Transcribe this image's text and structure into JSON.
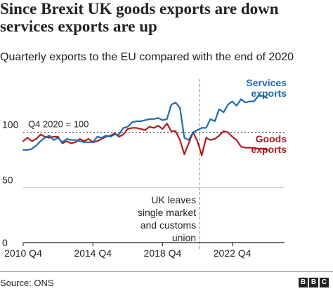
{
  "title": "Since Brexit UK goods exports are down services exports are up",
  "subtitle": "Quarterly exports to the EU compared with the end of 2020",
  "source": "Source: ONS",
  "logo": [
    "B",
    "B",
    "C"
  ],
  "colors": {
    "services": "#1f6bb0",
    "goods": "#b01c1c",
    "axis": "#222222",
    "grid": "#cccccc",
    "reference": "#222222",
    "event": "#888888"
  },
  "chart_data": {
    "type": "line",
    "title": "Since Brexit UK goods exports are down services exports are up",
    "subtitle": "Quarterly exports to the EU compared with the end of 2020",
    "x_tick_labels": [
      "2010 Q4",
      "2014 Q4",
      "2018 Q4",
      "2022 Q4"
    ],
    "x_tick_positions": [
      0,
      16,
      32,
      48
    ],
    "y_tick_labels": [
      "0",
      "50",
      "100"
    ],
    "y_tick_values": [
      0,
      50,
      100
    ],
    "ylim": [
      0,
      150
    ],
    "xlim": [
      0,
      60
    ],
    "grid": true,
    "reference_line": {
      "value": 100,
      "label": "Q4 2020 = 100"
    },
    "event": {
      "x": 40.5,
      "label": [
        "UK leaves",
        "single market",
        "and customs",
        "union"
      ]
    },
    "series": [
      {
        "name": "Services exports",
        "label_lines": [
          "Services",
          "exports"
        ],
        "color": "#1f6bb0",
        "values": [
          84,
          84,
          85,
          88,
          92,
          95,
          97,
          93,
          95,
          91,
          94,
          93,
          93,
          92,
          91,
          91,
          91,
          96,
          95,
          97,
          96,
          98,
          98,
          104,
          105,
          109,
          110,
          110,
          111,
          112,
          112,
          113,
          111,
          112,
          125,
          127,
          122,
          95,
          93,
          100,
          102,
          104,
          104,
          112,
          110,
          121,
          118,
          125,
          128,
          124,
          130,
          127,
          128,
          128,
          133,
          133,
          131
        ]
      },
      {
        "name": "Goods exports",
        "label_lines": [
          "Goods",
          "exports"
        ],
        "color": "#b01c1c",
        "values": [
          92,
          95,
          92,
          94,
          98,
          96,
          95,
          96,
          96,
          90,
          92,
          90,
          91,
          94,
          92,
          94,
          91,
          92,
          94,
          96,
          97,
          99,
          96,
          98,
          103,
          104,
          104,
          103,
          102,
          105,
          104,
          106,
          103,
          108,
          101,
          101,
          93,
          80,
          90,
          100,
          92,
          79,
          95,
          93,
          94,
          97,
          101,
          100,
          96,
          93,
          87,
          86,
          86,
          86,
          85,
          85,
          84
        ]
      }
    ]
  }
}
